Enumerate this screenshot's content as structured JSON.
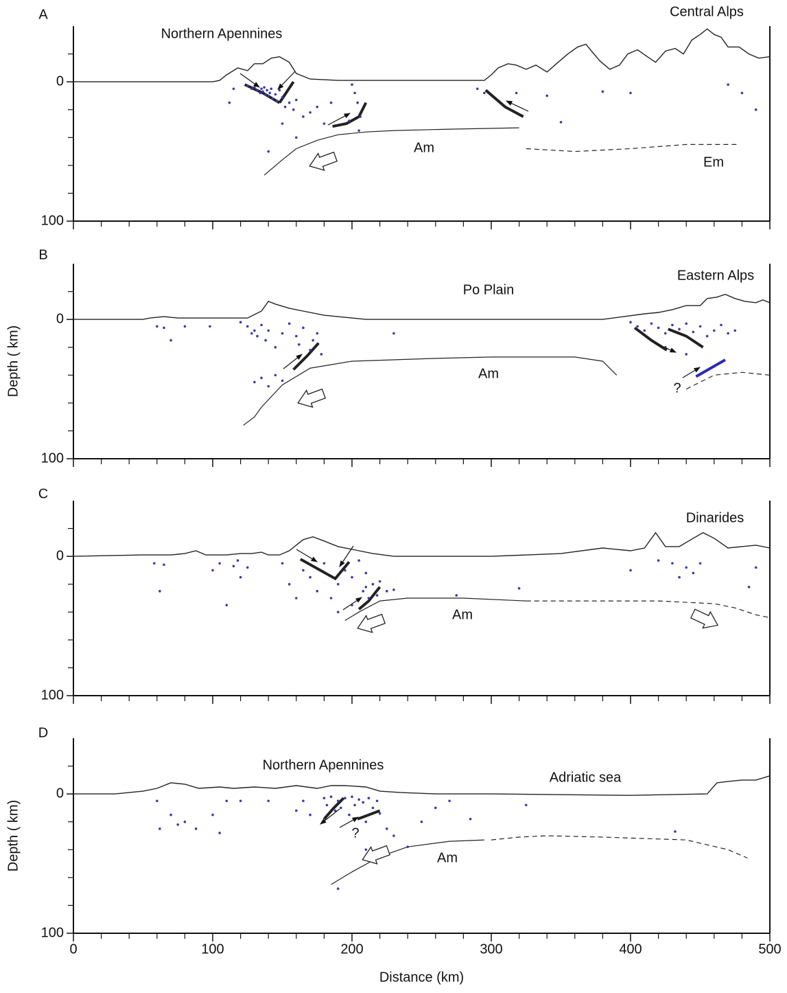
{
  "chart_data": [
    {
      "type": "scatter",
      "panel_label": "A",
      "annotations": [
        "Northern Apennines",
        "Central Alps",
        "Am",
        "Em"
      ],
      "xlim": [
        0,
        500
      ],
      "xticks": [
        0,
        100,
        200,
        300,
        400,
        500
      ],
      "show_xtick_labels": false,
      "xminorticks": [
        20,
        40,
        60,
        80,
        120,
        140,
        160,
        180,
        220,
        240,
        260,
        280,
        320,
        340,
        360,
        380,
        420,
        440,
        460,
        480
      ],
      "ylim": [
        -40,
        100
      ],
      "y_inverted": true,
      "yticks": [
        0,
        100
      ],
      "yminorticks": [
        -20,
        20,
        40,
        60,
        80
      ],
      "points": {
        "color": "#3a3aa8",
        "x": [
          125,
          128,
          130,
          132,
          134,
          135,
          136,
          137,
          138,
          139,
          140,
          141,
          142,
          143,
          145,
          146,
          148,
          150,
          152,
          155,
          158,
          160,
          165,
          170,
          175,
          180,
          185,
          200,
          202,
          204,
          206,
          205,
          198,
          115,
          112,
          140,
          150,
          160,
          290,
          295,
          318,
          340,
          350,
          380,
          400,
          480,
          490,
          470
        ],
        "y": [
          3,
          5,
          4,
          6,
          8,
          5,
          7,
          4,
          9,
          6,
          10,
          8,
          5,
          12,
          9,
          14,
          6,
          11,
          18,
          15,
          20,
          13,
          25,
          22,
          18,
          30,
          15,
          2,
          8,
          15,
          25,
          35,
          28,
          5,
          15,
          50,
          30,
          40,
          5,
          8,
          8,
          10,
          29,
          7,
          8,
          8,
          20,
          2
        ]
      },
      "lines": [
        {
          "style": "topography",
          "x": [
            0,
            100,
            105,
            110,
            118,
            125,
            130,
            136,
            142,
            148,
            155,
            160,
            170,
            190,
            295,
            300,
            305,
            312,
            318,
            325,
            332,
            340,
            348,
            355,
            362,
            368,
            372,
            378,
            385,
            392,
            398,
            405,
            412,
            418,
            425,
            432,
            438,
            444,
            450,
            455,
            460,
            465,
            470,
            478,
            485,
            492,
            500
          ],
          "y": [
            0,
            0,
            -1,
            -5,
            -10,
            -8,
            -13,
            -13,
            -17,
            -18,
            -14,
            -6,
            -2,
            -1,
            -1,
            -5,
            -10,
            -13,
            -12,
            -9,
            -12,
            -7,
            -14,
            -20,
            -25,
            -27,
            -22,
            -15,
            -9,
            -12,
            -20,
            -23,
            -18,
            -14,
            -22,
            -24,
            -20,
            -30,
            -34,
            -38,
            -34,
            -32,
            -25,
            -25,
            -20,
            -17,
            -18
          ]
        },
        {
          "style": "solid",
          "x": [
            137,
            150,
            160,
            175,
            190,
            210,
            230,
            270,
            320
          ],
          "y": [
            67,
            56,
            48,
            42,
            38,
            36,
            35,
            34,
            33
          ]
        },
        {
          "style": "dashed",
          "x": [
            325,
            360,
            400,
            440,
            478
          ],
          "y": [
            48,
            50,
            48,
            45,
            45
          ]
        },
        {
          "style": "fault",
          "x": [
            123,
            136,
            148
          ],
          "y": [
            2,
            8,
            15
          ]
        },
        {
          "style": "fault",
          "x": [
            148,
            158
          ],
          "y": [
            15,
            0
          ]
        },
        {
          "style": "fault",
          "x": [
            186,
            196,
            205,
            210
          ],
          "y": [
            32,
            30,
            25,
            15
          ]
        },
        {
          "style": "fault",
          "x": [
            296,
            310,
            323
          ],
          "y": [
            6,
            18,
            25
          ]
        }
      ]
    },
    {
      "type": "scatter",
      "panel_label": "B",
      "ylabel": "Depth ( km)",
      "annotations": [
        "Po Plain",
        "Eastern Alps",
        "Am",
        "?"
      ],
      "xlim": [
        0,
        500
      ],
      "xticks": [
        0,
        100,
        200,
        300,
        400,
        500
      ],
      "show_xtick_labels": false,
      "xminorticks": [
        20,
        40,
        60,
        80,
        120,
        140,
        160,
        180,
        220,
        240,
        260,
        280,
        320,
        340,
        360,
        380,
        420,
        440,
        460,
        480
      ],
      "ylim": [
        -40,
        100
      ],
      "y_inverted": true,
      "yticks": [
        0,
        100
      ],
      "yminorticks": [
        -20,
        20,
        40,
        60,
        80
      ],
      "points": {
        "color": "#3a3aa8",
        "x": [
          60,
          65,
          70,
          80,
          98,
          120,
          125,
          128,
          130,
          132,
          135,
          138,
          140,
          145,
          150,
          155,
          160,
          162,
          165,
          170,
          172,
          175,
          178,
          130,
          135,
          140,
          145,
          150,
          230,
          400,
          405,
          410,
          415,
          420,
          425,
          430,
          435,
          440,
          445,
          450,
          455,
          460,
          465,
          470,
          475,
          425,
          440
        ],
        "y": [
          5,
          6,
          15,
          5,
          5,
          2,
          5,
          10,
          8,
          12,
          4,
          15,
          8,
          20,
          10,
          3,
          12,
          18,
          6,
          22,
          15,
          10,
          25,
          45,
          42,
          48,
          40,
          44,
          10,
          2,
          5,
          8,
          3,
          6,
          10,
          4,
          7,
          3,
          9,
          5,
          12,
          8,
          4,
          10,
          8,
          20,
          25
        ]
      },
      "lines": [
        {
          "style": "topography",
          "x": [
            0,
            50,
            55,
            65,
            75,
            100,
            125,
            135,
            140,
            145,
            155,
            165,
            180,
            200,
            210,
            380,
            395,
            410,
            420,
            430,
            440,
            450,
            455,
            462,
            468,
            475,
            482,
            490,
            495,
            500
          ],
          "y": [
            0,
            0,
            -1,
            -2,
            -1,
            -1,
            -1,
            -6,
            -13,
            -11,
            -8,
            -6,
            -3,
            -1,
            0,
            0,
            -2,
            -4,
            -5,
            -7,
            -10,
            -10,
            -15,
            -16,
            -18,
            -15,
            -13,
            -12,
            -14,
            -12
          ]
        },
        {
          "style": "solid",
          "x": [
            122,
            130,
            135,
            150,
            170,
            200,
            260,
            300,
            360,
            380,
            390
          ],
          "y": [
            76,
            70,
            63,
            47,
            35,
            30,
            28,
            27,
            27,
            30,
            40
          ]
        },
        {
          "style": "dashed",
          "x": [
            440,
            460,
            480,
            500
          ],
          "y": [
            50,
            40,
            38,
            40
          ]
        },
        {
          "style": "fault",
          "x": [
            158,
            168,
            176
          ],
          "y": [
            36,
            26,
            17
          ]
        },
        {
          "style": "fault",
          "x": [
            403,
            415,
            426
          ],
          "y": [
            6,
            15,
            22
          ]
        },
        {
          "style": "fault",
          "x": [
            427,
            440,
            452
          ],
          "y": [
            7,
            12,
            20
          ]
        },
        {
          "style": "fault",
          "color": "#2a2ab0",
          "x": [
            447,
            468
          ],
          "y": [
            41,
            29
          ]
        }
      ]
    },
    {
      "type": "scatter",
      "panel_label": "C",
      "annotations": [
        "Dinarides",
        "Am"
      ],
      "xlim": [
        0,
        500
      ],
      "xticks": [
        0,
        100,
        200,
        300,
        400,
        500
      ],
      "show_xtick_labels": false,
      "xminorticks": [
        20,
        40,
        60,
        80,
        120,
        140,
        160,
        180,
        220,
        240,
        260,
        280,
        320,
        340,
        360,
        380,
        420,
        440,
        460,
        480
      ],
      "ylim": [
        -40,
        100
      ],
      "y_inverted": true,
      "yticks": [
        0,
        100
      ],
      "yminorticks": [
        -20,
        20,
        40,
        60,
        80
      ],
      "points": {
        "color": "#3a3aa8",
        "x": [
          58,
          62,
          65,
          100,
          105,
          110,
          115,
          118,
          120,
          125,
          150,
          155,
          160,
          165,
          170,
          175,
          180,
          185,
          190,
          195,
          200,
          205,
          208,
          210,
          212,
          215,
          218,
          220,
          225,
          230,
          200,
          190,
          210,
          275,
          320,
          400,
          420,
          430,
          435,
          440,
          445,
          450,
          490,
          485
        ],
        "y": [
          5,
          25,
          6,
          10,
          5,
          35,
          7,
          3,
          15,
          8,
          5,
          20,
          30,
          10,
          15,
          25,
          5,
          30,
          20,
          10,
          15,
          3,
          25,
          22,
          30,
          20,
          28,
          18,
          25,
          24,
          35,
          40,
          12,
          28,
          23,
          10,
          3,
          5,
          15,
          8,
          12,
          5,
          8,
          22
        ]
      },
      "lines": [
        {
          "style": "topography",
          "x": [
            0,
            50,
            70,
            80,
            88,
            95,
            110,
            120,
            128,
            135,
            140,
            148,
            155,
            165,
            172,
            180,
            190,
            205,
            215,
            230,
            300,
            350,
            380,
            400,
            410,
            418,
            425,
            435,
            445,
            452,
            460,
            470,
            480,
            490,
            500
          ],
          "y": [
            0,
            -1,
            -1,
            -2,
            -4,
            -1,
            -1,
            -2,
            -2,
            -3,
            -1,
            -1,
            -4,
            -12,
            -14,
            -11,
            -7,
            -4,
            -2,
            0,
            0,
            -2,
            -6,
            -4,
            -6,
            -17,
            -7,
            -7,
            -13,
            -17,
            -13,
            -6,
            -7,
            -8,
            -6
          ]
        },
        {
          "style": "solid",
          "x": [
            195,
            205,
            220,
            240,
            280,
            325
          ],
          "y": [
            46,
            40,
            32,
            30,
            30,
            32
          ]
        },
        {
          "style": "dashed",
          "x": [
            325,
            360,
            420,
            460,
            475,
            490,
            500
          ],
          "y": [
            32,
            32,
            32,
            34,
            37,
            42,
            44
          ]
        },
        {
          "style": "fault",
          "x": [
            163,
            188,
            198
          ],
          "y": [
            2,
            16,
            4
          ]
        },
        {
          "style": "fault",
          "x": [
            205,
            212,
            220
          ],
          "y": [
            38,
            32,
            22
          ]
        }
      ]
    },
    {
      "type": "scatter",
      "panel_label": "D",
      "ylabel": "Depth ( km)",
      "xlabel": "Distance (km)",
      "annotations": [
        "Northern Apennines",
        "Adriatic sea",
        "Am",
        "?"
      ],
      "xlim": [
        0,
        500
      ],
      "xticks": [
        0,
        100,
        200,
        300,
        400,
        500
      ],
      "show_xtick_labels": true,
      "xminorticks": [
        20,
        40,
        60,
        80,
        120,
        140,
        160,
        180,
        220,
        240,
        260,
        280,
        320,
        340,
        360,
        380,
        420,
        440,
        460,
        480
      ],
      "ylim": [
        -40,
        100
      ],
      "y_inverted": true,
      "yticks": [
        0,
        100
      ],
      "yminorticks": [
        -20,
        20,
        40,
        60,
        80
      ],
      "points": {
        "color": "#3a3aa8",
        "x": [
          60,
          62,
          70,
          75,
          80,
          88,
          100,
          105,
          110,
          120,
          140,
          160,
          165,
          170,
          180,
          182,
          185,
          188,
          190,
          192,
          195,
          198,
          200,
          202,
          205,
          208,
          210,
          212,
          215,
          218,
          220,
          225,
          230,
          240,
          250,
          260,
          270,
          285,
          325,
          432,
          190,
          210
        ],
        "y": [
          5,
          25,
          15,
          22,
          20,
          25,
          15,
          28,
          5,
          5,
          5,
          12,
          5,
          15,
          3,
          8,
          2,
          12,
          5,
          10,
          3,
          15,
          2,
          8,
          4,
          6,
          20,
          3,
          10,
          5,
          14,
          25,
          30,
          38,
          20,
          10,
          5,
          18,
          8,
          27,
          68,
          40
        ]
      },
      "lines": [
        {
          "style": "topography",
          "x": [
            0,
            30,
            50,
            60,
            70,
            80,
            90,
            105,
            115,
            130,
            145,
            160,
            175,
            185,
            195,
            210,
            220,
            235,
            260,
            300,
            400,
            455,
            462,
            470,
            480,
            490,
            500
          ],
          "y": [
            0,
            0,
            -2,
            -4,
            -8,
            -7,
            -4,
            -5,
            -4,
            -5,
            -4,
            -6,
            -4,
            -6,
            -6,
            -5,
            -2,
            -1,
            0,
            0,
            1,
            0,
            -8,
            -9,
            -10,
            -10,
            -13
          ]
        },
        {
          "style": "solid",
          "x": [
            185,
            200,
            220,
            240,
            270,
            295
          ],
          "y": [
            65,
            56,
            45,
            38,
            34,
            33
          ]
        },
        {
          "style": "dashed",
          "x": [
            300,
            320,
            340,
            380,
            440,
            470,
            484
          ],
          "y": [
            33,
            31,
            30,
            31,
            33,
            40,
            46
          ]
        },
        {
          "style": "fault",
          "x": [
            180,
            187,
            194
          ],
          "y": [
            18,
            10,
            3
          ]
        },
        {
          "style": "fault",
          "x": [
            204,
            212,
            220
          ],
          "y": [
            18,
            15,
            12
          ]
        }
      ]
    }
  ]
}
